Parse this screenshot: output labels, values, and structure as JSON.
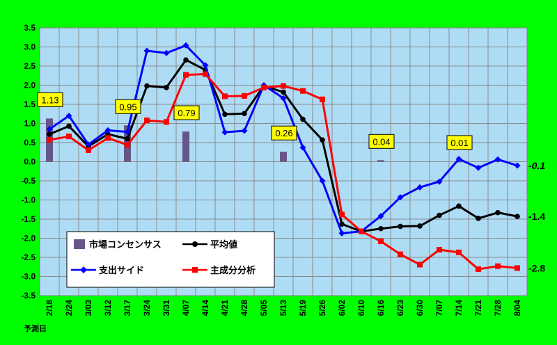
{
  "chart_data": {
    "type": "line",
    "xlabel": "予測日",
    "ylim": [
      -3.5,
      3.5
    ],
    "y_ticks": [
      "3.5",
      "3.0",
      "2.5",
      "2.0",
      "1.5",
      "1.0",
      "0.5",
      "0.0",
      "-0.5",
      "-1.0",
      "-1.5",
      "-2.0",
      "-2.5",
      "-3.0",
      "-3.5"
    ],
    "categories": [
      "2/18",
      "2/24",
      "3/03",
      "3/12",
      "3/17",
      "3/24",
      "3/31",
      "4/07",
      "4/14",
      "4/21",
      "4/28",
      "5/05",
      "5/13",
      "5/19",
      "5/26",
      "6/02",
      "6/10",
      "6/16",
      "6/23",
      "6/30",
      "7/07",
      "7/14",
      "7/21",
      "7/28",
      "8/04"
    ],
    "consensus": {
      "name": "市場コンセンサス",
      "color": "#665588",
      "points": [
        {
          "category": "2/18",
          "value": 1.13,
          "label": "1.13"
        },
        {
          "category": "3/17",
          "value": 0.95,
          "label": "0.95"
        },
        {
          "category": "4/07",
          "value": 0.79,
          "label": "0.79"
        },
        {
          "category": "5/13",
          "value": 0.26,
          "label": "0.26"
        },
        {
          "category": "6/16",
          "value": 0.04,
          "label": "0.04"
        },
        {
          "category": "7/14",
          "value": 0.01,
          "label": "0.01"
        }
      ]
    },
    "series": [
      {
        "name": "平均値",
        "color": "#000000",
        "marker": "circle",
        "values": [
          0.72,
          0.93,
          0.4,
          0.72,
          0.6,
          1.98,
          1.94,
          2.66,
          2.4,
          1.24,
          1.26,
          1.98,
          1.82,
          1.11,
          0.57,
          -1.63,
          -1.82,
          -1.75,
          -1.69,
          -1.68,
          -1.4,
          -1.16,
          -1.48,
          -1.33,
          -1.43
        ],
        "end_label": "-1.4"
      },
      {
        "name": "支出サイド",
        "color": "#0000ff",
        "marker": "diamond",
        "values": [
          0.85,
          1.2,
          0.45,
          0.82,
          0.78,
          2.9,
          2.84,
          3.04,
          2.52,
          0.77,
          0.81,
          2.0,
          1.66,
          0.37,
          -0.5,
          -1.87,
          -1.82,
          -1.42,
          -0.93,
          -0.67,
          -0.52,
          0.07,
          -0.16,
          0.06,
          -0.1
        ],
        "end_label": "-0.1"
      },
      {
        "name": "主成分分析",
        "color": "#ff0000",
        "marker": "square",
        "values": [
          0.57,
          0.66,
          0.3,
          0.62,
          0.44,
          1.08,
          1.04,
          2.27,
          2.29,
          1.71,
          1.72,
          1.94,
          1.98,
          1.85,
          1.63,
          -1.38,
          -1.82,
          -2.08,
          -2.42,
          -2.69,
          -2.3,
          -2.37,
          -2.81,
          -2.73,
          -2.78
        ],
        "end_label": "-2.8"
      }
    ],
    "grid": true,
    "legend": "bottom-left"
  }
}
